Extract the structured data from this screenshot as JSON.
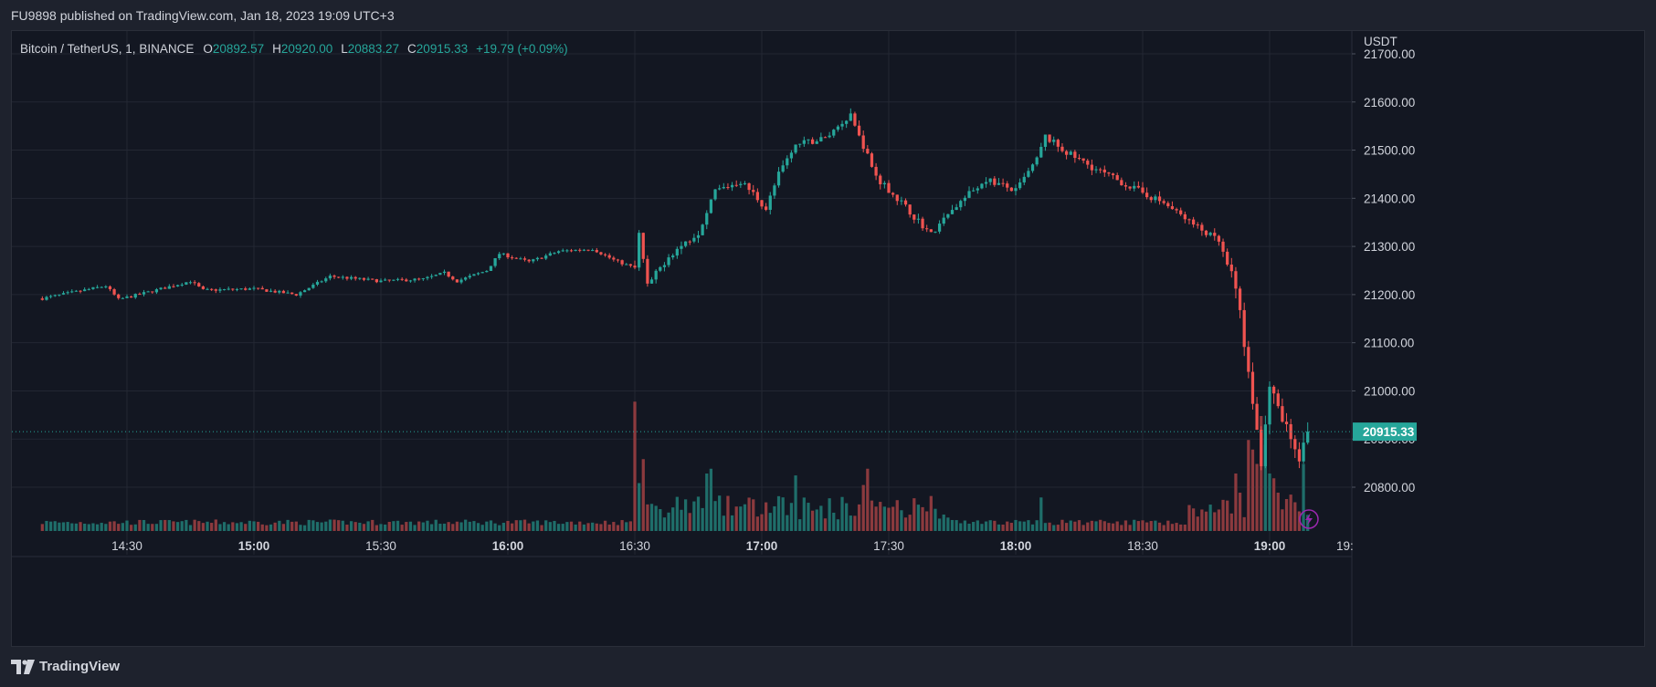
{
  "header": {
    "published": "FU9898 published on TradingView.com, Jan 18, 2023 19:09 UTC+3"
  },
  "legend": {
    "symbol": "Bitcoin / TetherUS, 1, BINANCE",
    "o_label": "O",
    "o_value": "20892.57",
    "h_label": "H",
    "h_value": "20920.00",
    "l_label": "L",
    "l_value": "20883.27",
    "c_label": "C",
    "c_value": "20915.33",
    "change": "+19.79 (+0.09%)"
  },
  "price_axis": {
    "currency": "USDT",
    "ticks": [
      "21700.00",
      "21600.00",
      "21500.00",
      "21400.00",
      "21300.00",
      "21200.00",
      "21100.00",
      "21000.00",
      "20900.00",
      "20800.00"
    ],
    "last_price_label": "20915.33"
  },
  "time_axis": {
    "ticks": [
      {
        "label": "14:30",
        "bold": false
      },
      {
        "label": "15:00",
        "bold": true
      },
      {
        "label": "15:30",
        "bold": false
      },
      {
        "label": "16:00",
        "bold": true
      },
      {
        "label": "16:30",
        "bold": false
      },
      {
        "label": "17:00",
        "bold": true
      },
      {
        "label": "17:30",
        "bold": false
      },
      {
        "label": "18:00",
        "bold": true
      },
      {
        "label": "18:30",
        "bold": false
      },
      {
        "label": "19:00",
        "bold": true
      },
      {
        "label": "19:",
        "bold": false
      }
    ]
  },
  "footer": {
    "brand": "TradingView"
  },
  "colors": {
    "up": "#26a69a",
    "down": "#ef5350",
    "up_volume": "#1f6e6a",
    "down_volume": "#8c3a3e",
    "grid": "#232733",
    "background": "#131722",
    "last_price_line": "#26a69a",
    "lightning_badge": "#9c27b0"
  },
  "chart_data": {
    "type": "candlestick",
    "title": "Bitcoin / TetherUS, 1, BINANCE",
    "interval": "1 minute",
    "x_range": [
      "14:10",
      "19:09"
    ],
    "y_range": [
      20720,
      21710
    ],
    "last_price": 20915.33,
    "ohlc_anchor_path": [
      [
        "14:10",
        21192
      ],
      [
        "14:25",
        21218
      ],
      [
        "14:28",
        21190
      ],
      [
        "14:35",
        21205
      ],
      [
        "14:45",
        21228
      ],
      [
        "14:48",
        21209
      ],
      [
        "15:00",
        21212
      ],
      [
        "15:10",
        21200
      ],
      [
        "15:18",
        21238
      ],
      [
        "15:30",
        21228
      ],
      [
        "15:40",
        21232
      ],
      [
        "15:45",
        21245
      ],
      [
        "15:48",
        21228
      ],
      [
        "15:55",
        21250
      ],
      [
        "15:58",
        21285
      ],
      [
        "16:05",
        21268
      ],
      [
        "16:12",
        21290
      ],
      [
        "16:20",
        21295
      ],
      [
        "16:25",
        21272
      ],
      [
        "16:30",
        21255
      ],
      [
        "16:31",
        21325
      ],
      [
        "16:33",
        21218
      ],
      [
        "16:38",
        21280
      ],
      [
        "16:45",
        21330
      ],
      [
        "16:49",
        21415
      ],
      [
        "16:55",
        21435
      ],
      [
        "16:58",
        21410
      ],
      [
        "17:01",
        21378
      ],
      [
        "17:04",
        21450
      ],
      [
        "17:08",
        21510
      ],
      [
        "17:15",
        21525
      ],
      [
        "17:21",
        21575
      ],
      [
        "17:24",
        21508
      ],
      [
        "17:27",
        21445
      ],
      [
        "17:32",
        21400
      ],
      [
        "17:40",
        21325
      ],
      [
        "17:46",
        21385
      ],
      [
        "17:53",
        21440
      ],
      [
        "18:00",
        21415
      ],
      [
        "18:05",
        21480
      ],
      [
        "18:07",
        21528
      ],
      [
        "18:12",
        21495
      ],
      [
        "18:20",
        21455
      ],
      [
        "18:28",
        21420
      ],
      [
        "18:35",
        21390
      ],
      [
        "18:42",
        21345
      ],
      [
        "18:48",
        21310
      ],
      [
        "18:52",
        21210
      ],
      [
        "18:55",
        21050
      ],
      [
        "18:58",
        20850
      ],
      [
        "19:00",
        21010
      ],
      [
        "19:03",
        20935
      ],
      [
        "19:05",
        20910
      ],
      [
        "19:07",
        20860
      ],
      [
        "19:08",
        20892.57
      ],
      [
        "19:09",
        20915.33
      ]
    ],
    "volume_notes": "Histogram below price; spikes near 16:30, 16:48, 17:25 and a cluster of large bars during the 18:55-19:05 sell-off."
  }
}
